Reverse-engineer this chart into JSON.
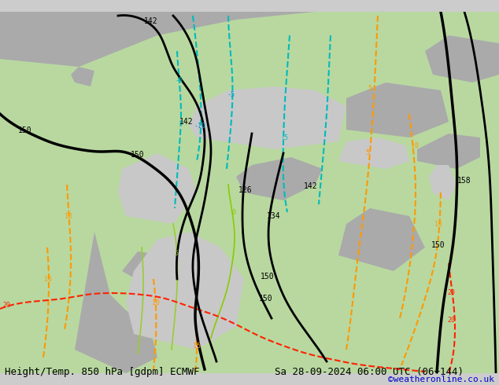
{
  "title_left": "Height/Temp. 850 hPa [gdpm] ECMWF",
  "title_right": "Sa 28-09-2024 06:00 UTC (06+144)",
  "credit": "©weatheronline.co.uk",
  "bg_color": "#d3d3d3",
  "land_color_green": "#b3e0a0",
  "land_color_gray": "#aaaaaa",
  "sea_color": "#d0d0d0",
  "title_font_size": 9,
  "credit_color": "#0000cc",
  "height_line_color": "#000000",
  "temp_neg_color_1": "#00cccc",
  "temp_neg_color_2": "#0099cc",
  "temp_pos_color_1": "#ffaa00",
  "temp_pos_color_2": "#ff4400",
  "temp_zero_color": "#88cc00",
  "figsize": [
    6.34,
    4.9
  ],
  "dpi": 100
}
